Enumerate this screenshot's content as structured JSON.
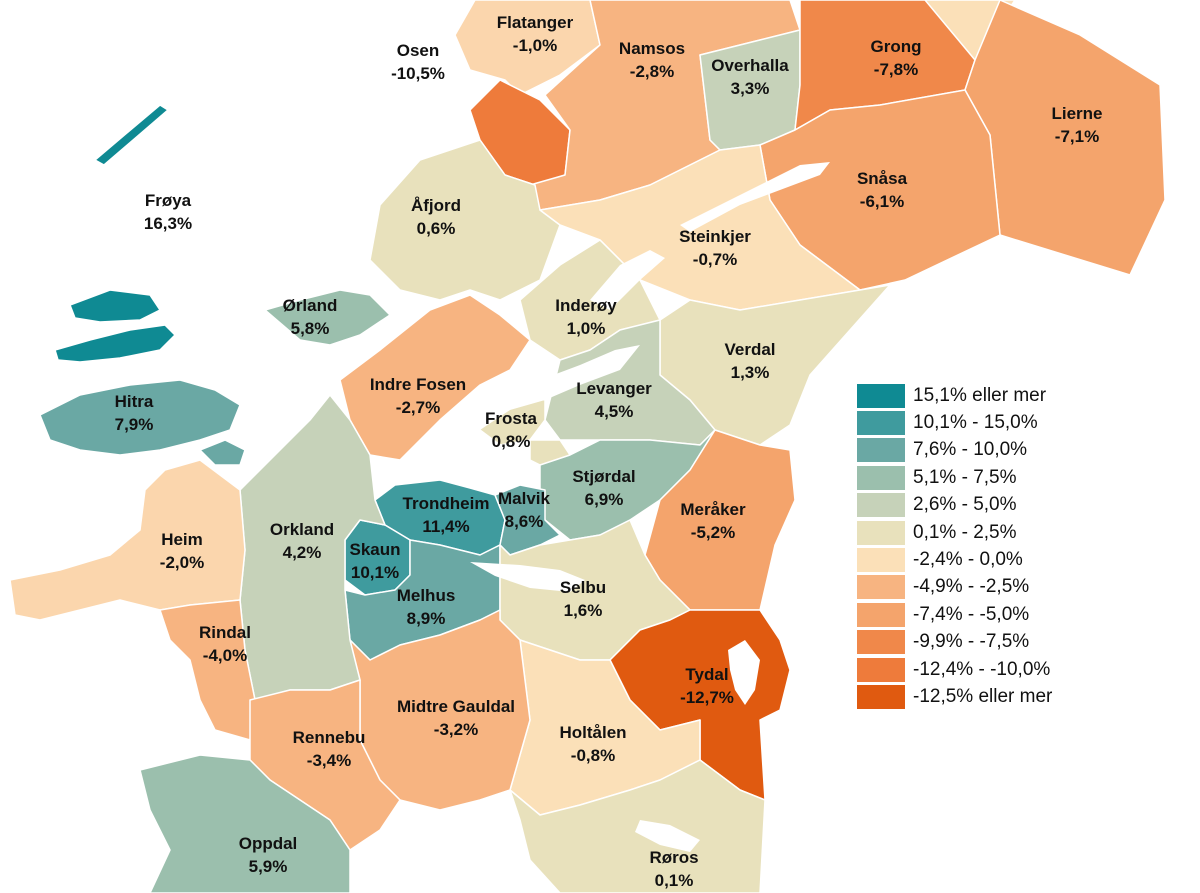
{
  "map": {
    "regions": [
      {
        "name": "Osen",
        "value": "-10,5%",
        "color": "#ee7b3b"
      },
      {
        "name": "Flatanger",
        "value": "-1,0%",
        "color": "#fbd6ad"
      },
      {
        "name": "Namsos",
        "value": "-2,8%",
        "color": "#f7b481"
      },
      {
        "name": "Overhalla",
        "value": "3,3%",
        "color": "#c6d2b9"
      },
      {
        "name": "Grong",
        "value": "-7,8%",
        "color": "#f0884a"
      },
      {
        "name": "Lierne",
        "value": "-7,1%",
        "color": "#f4a46c"
      },
      {
        "name": "Snåsa",
        "value": "-6,1%",
        "color": "#f4a46c"
      },
      {
        "name": "Frøya",
        "value": "16,3%",
        "color": "#0f8a93"
      },
      {
        "name": "Åfjord",
        "value": "0,6%",
        "color": "#e8e1bc"
      },
      {
        "name": "Steinkjer",
        "value": "-0,7%",
        "color": "#fbe0b8"
      },
      {
        "name": "Ørland",
        "value": "5,8%",
        "color": "#9bbfad"
      },
      {
        "name": "Inderøy",
        "value": "1,0%",
        "color": "#e8e1bc"
      },
      {
        "name": "Verdal",
        "value": "1,3%",
        "color": "#e8e1bc"
      },
      {
        "name": "Indre Fosen",
        "value": "-2,7%",
        "color": "#f7b481"
      },
      {
        "name": "Levanger",
        "value": "4,5%",
        "color": "#c6d2b9"
      },
      {
        "name": "Hitra",
        "value": "7,9%",
        "color": "#6aa8a4"
      },
      {
        "name": "Frosta",
        "value": "0,8%",
        "color": "#e8e1bc"
      },
      {
        "name": "Stjørdal",
        "value": "6,9%",
        "color": "#9bbfad"
      },
      {
        "name": "Trondheim",
        "value": "11,4%",
        "color": "#3f9b9e"
      },
      {
        "name": "Malvik",
        "value": "8,6%",
        "color": "#6aa8a4"
      },
      {
        "name": "Meråker",
        "value": "-5,2%",
        "color": "#f4a46c"
      },
      {
        "name": "Heim",
        "value": "-2,0%",
        "color": "#fbd6ad"
      },
      {
        "name": "Orkland",
        "value": "4,2%",
        "color": "#c6d2b9"
      },
      {
        "name": "Skaun",
        "value": "10,1%",
        "color": "#3f9b9e"
      },
      {
        "name": "Melhus",
        "value": "8,9%",
        "color": "#6aa8a4"
      },
      {
        "name": "Selbu",
        "value": "1,6%",
        "color": "#e8e1bc"
      },
      {
        "name": "Rindal",
        "value": "-4,0%",
        "color": "#f7b481"
      },
      {
        "name": "Tydal",
        "value": "-12,7%",
        "color": "#e05a10"
      },
      {
        "name": "Midtre Gauldal",
        "value": "-3,2%",
        "color": "#f7b481"
      },
      {
        "name": "Rennebu",
        "value": "-3,4%",
        "color": "#f7b481"
      },
      {
        "name": "Holtålen",
        "value": "-0,8%",
        "color": "#fbe0b8"
      },
      {
        "name": "Oppdal",
        "value": "5,9%",
        "color": "#9bbfad"
      },
      {
        "name": "Røros",
        "value": "0,1%",
        "color": "#e8e1bc"
      }
    ]
  },
  "legend": {
    "items": [
      {
        "label": "15,1% eller mer",
        "color": "#0f8a93"
      },
      {
        "label": "10,1% - 15,0%",
        "color": "#3f9b9e"
      },
      {
        "label": "7,6% - 10,0%",
        "color": "#6aa8a4"
      },
      {
        "label": "5,1% - 7,5%",
        "color": "#9bbfad"
      },
      {
        "label": "2,6% - 5,0%",
        "color": "#c6d2b9"
      },
      {
        "label": "0,1% - 2,5%",
        "color": "#e8e1bc"
      },
      {
        "label": "-2,4% - 0,0%",
        "color": "#fbe0b8"
      },
      {
        "label": "-4,9% - -2,5%",
        "color": "#f7b481"
      },
      {
        "label": "-7,4% - -5,0%",
        "color": "#f4a46c"
      },
      {
        "label": "-9,9% - -7,5%",
        "color": "#f0884a"
      },
      {
        "label": "-12,4% - -10,0%",
        "color": "#ee7b3b"
      },
      {
        "label": "-12,5% eller mer",
        "color": "#e05a10"
      }
    ]
  }
}
